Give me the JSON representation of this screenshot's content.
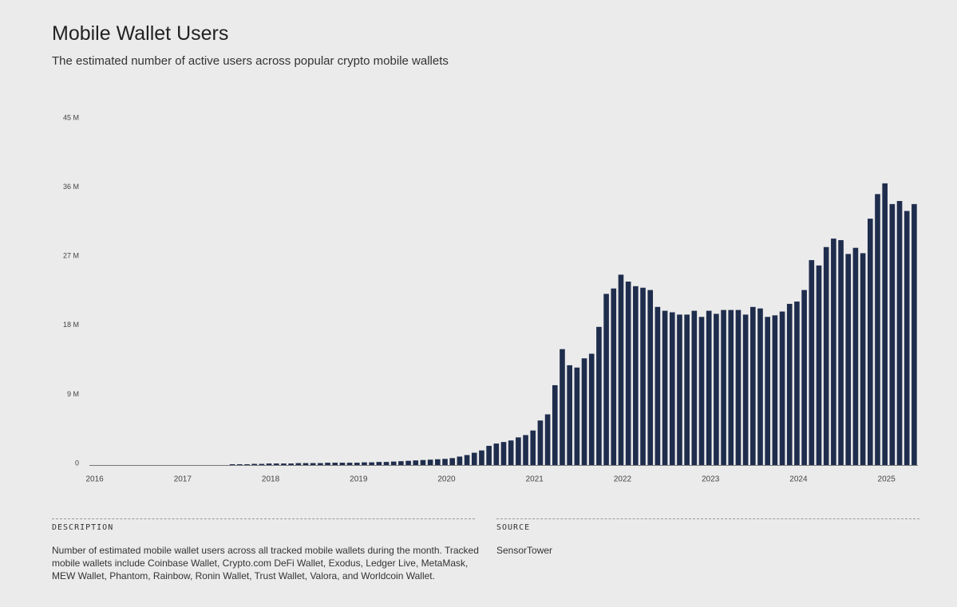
{
  "chart_data": {
    "type": "bar",
    "title": "Mobile Wallet Users",
    "subtitle": "The estimated number of active users across popular crypto mobile wallets",
    "categories": [
      "2016",
      null,
      null,
      null,
      null,
      null,
      null,
      null,
      null,
      null,
      null,
      null,
      "2017",
      null,
      null,
      null,
      null,
      null,
      null,
      null,
      null,
      null,
      null,
      null,
      "2018",
      null,
      null,
      null,
      null,
      null,
      null,
      null,
      null,
      null,
      null,
      null,
      "2019",
      null,
      null,
      null,
      null,
      null,
      null,
      null,
      null,
      null,
      null,
      null,
      "2020",
      null,
      null,
      null,
      null,
      null,
      null,
      null,
      null,
      null,
      null,
      null,
      "2021",
      null,
      null,
      null,
      null,
      null,
      null,
      null,
      null,
      null,
      null,
      null,
      "2022",
      null,
      null,
      null,
      null,
      null,
      null,
      null,
      null,
      null,
      null,
      null,
      "2023",
      null,
      null,
      null,
      null,
      null,
      null,
      null,
      null,
      null,
      null,
      null,
      "2024",
      null,
      null,
      null,
      null,
      null,
      null,
      null,
      null,
      null,
      null,
      null,
      "2025",
      null,
      null,
      null,
      null
    ],
    "values": [
      0,
      0,
      0,
      0,
      0,
      0,
      0,
      0,
      0,
      0,
      0,
      0,
      0,
      0,
      0,
      0,
      0,
      0,
      0,
      0.1,
      0.1,
      0.1,
      0.15,
      0.15,
      0.2,
      0.2,
      0.2,
      0.2,
      0.25,
      0.25,
      0.25,
      0.25,
      0.3,
      0.3,
      0.3,
      0.3,
      0.3,
      0.35,
      0.35,
      0.4,
      0.4,
      0.45,
      0.5,
      0.55,
      0.6,
      0.65,
      0.7,
      0.75,
      0.8,
      0.9,
      1.1,
      1.3,
      1.6,
      1.9,
      2.5,
      2.8,
      3.0,
      3.2,
      3.6,
      3.9,
      4.5,
      5.8,
      6.6,
      10.4,
      15.1,
      13,
      12.7,
      13.9,
      14.5,
      18,
      22.3,
      23,
      24.8,
      23.9,
      23.3,
      23.1,
      22.8,
      20.6,
      20.1,
      19.9,
      19.6,
      19.6,
      20.1,
      19.3,
      20.1,
      19.7,
      20.2,
      20.2,
      20.2,
      19.6,
      20.6,
      20.4,
      19.3,
      19.5,
      20,
      21,
      21.3,
      22.8,
      26.7,
      26,
      28.4,
      29.5,
      29.3,
      27.5,
      28.3,
      27.6,
      32.1,
      35.3,
      36.7,
      34,
      34.4,
      33.1,
      34
    ],
    "color": "#1f2d4d",
    "ylim": [
      0,
      45
    ],
    "yticks": [
      {
        "value": 0,
        "label": "0"
      },
      {
        "value": 9,
        "label": "9 M"
      },
      {
        "value": 18,
        "label": "18 M"
      },
      {
        "value": 27,
        "label": "27 M"
      },
      {
        "value": 36,
        "label": "36 M"
      },
      {
        "value": 45,
        "label": "45 M"
      }
    ],
    "grid": false,
    "description_heading": "DESCRIPTION",
    "description": "Number of estimated mobile wallet users across all tracked mobile wallets during the month. Tracked mobile wallets include Coinbase Wallet, Crypto.com DeFi Wallet, Exodus, Ledger Live, MetaMask, MEW Wallet, Phantom, Rainbow, Ronin Wallet, Trust Wallet, Valora, and Worldcoin Wallet.",
    "source_heading": "SOURCE",
    "source": "SensorTower"
  }
}
